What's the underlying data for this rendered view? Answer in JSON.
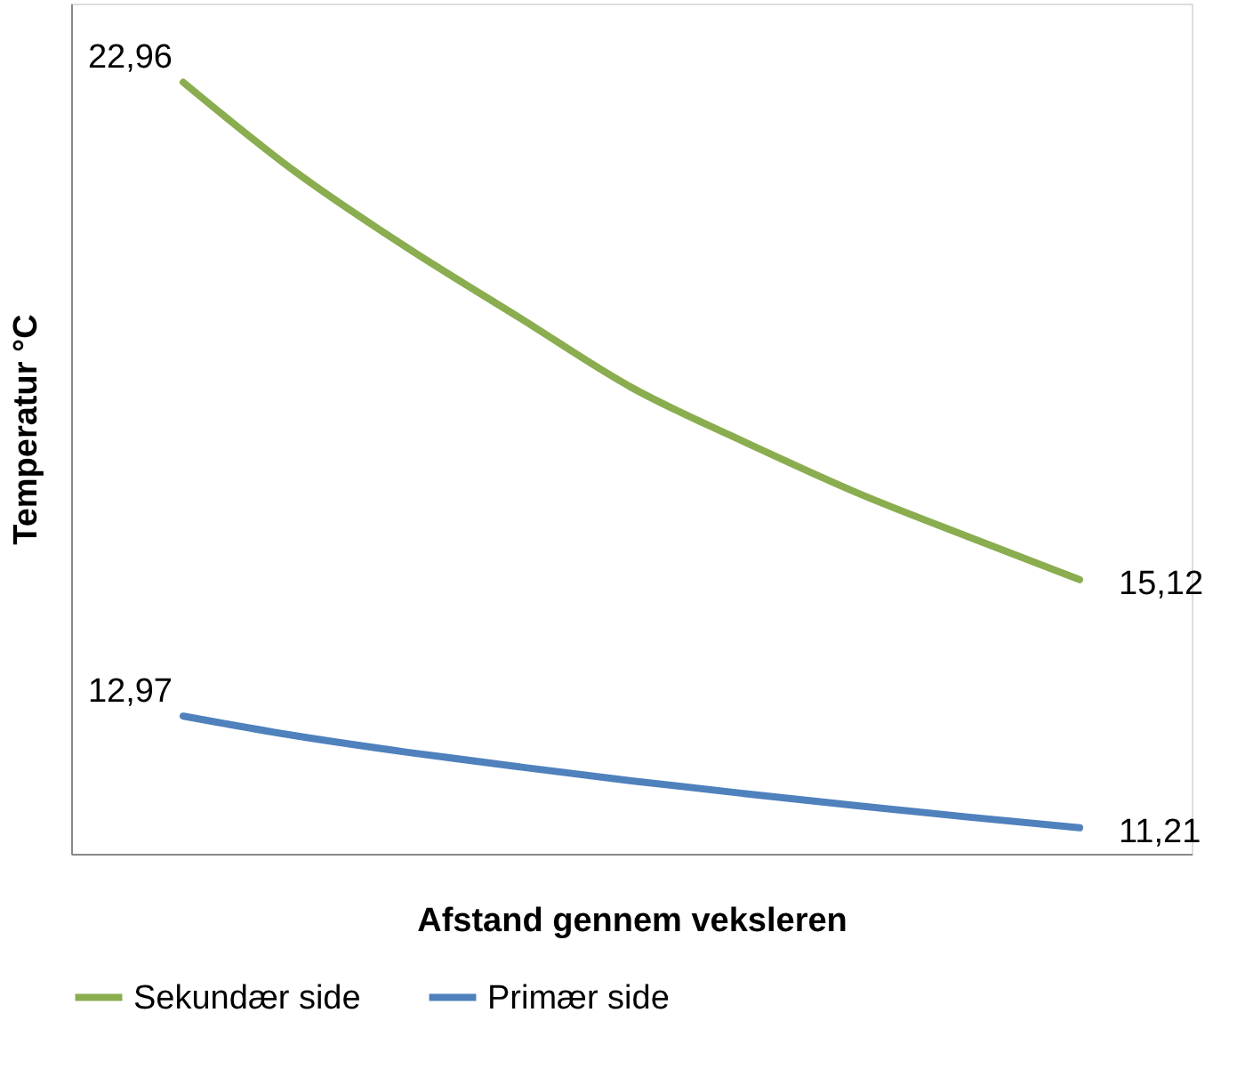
{
  "chart_data": {
    "type": "line",
    "xlabel": "Afstand gennem veksleren",
    "ylabel": "Temperatur  °C",
    "categories": [
      null,
      null,
      null,
      null,
      null,
      null,
      null,
      null,
      null
    ],
    "ylim": [
      10.8,
      24.2
    ],
    "tick_labels": false,
    "grid": false,
    "legend": "bottom",
    "marker": "none",
    "line_style": "solid",
    "series": [
      {
        "name": "Sekundær side",
        "color": "#8aad4f",
        "values": [
          22.96,
          21.55,
          20.35,
          19.25,
          18.15,
          17.3,
          16.5,
          15.8,
          15.12
        ],
        "value_labels": [
          "22,96",
          null,
          null,
          null,
          null,
          null,
          null,
          null,
          "15,12"
        ]
      },
      {
        "name": "Primær side",
        "color": "#4f81bd",
        "values": [
          12.97,
          12.66,
          12.4,
          12.17,
          11.95,
          11.75,
          11.56,
          11.38,
          11.21
        ],
        "value_labels": [
          "12,97",
          null,
          null,
          null,
          null,
          null,
          null,
          null,
          "11,21"
        ]
      }
    ]
  }
}
